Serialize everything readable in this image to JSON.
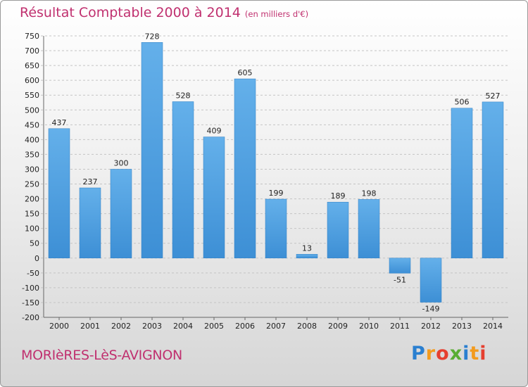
{
  "header": {
    "title": "Résultat Comptable 2000 à 2014",
    "unit": "(en milliers d'€)"
  },
  "footer": {
    "city": "MORIèRES-LèS-AVIGNON",
    "logo": [
      "P",
      "r",
      "o",
      "x",
      "i",
      "t",
      "i"
    ]
  },
  "colors": {
    "bar": "#3d8fd5",
    "bar_light": "#64b0ea",
    "title": "#c0306f"
  },
  "chart_data": {
    "type": "bar",
    "title": "Résultat Comptable 2000 à 2014",
    "subtitle": "(en milliers d'€)",
    "xlabel": "",
    "ylabel": "",
    "categories": [
      "2000",
      "2001",
      "2002",
      "2003",
      "2004",
      "2005",
      "2006",
      "2007",
      "2008",
      "2009",
      "2010",
      "2011",
      "2012",
      "2013",
      "2014"
    ],
    "values": [
      437,
      237,
      300,
      728,
      528,
      409,
      605,
      199,
      13,
      189,
      198,
      -51,
      -149,
      506,
      527
    ],
    "ylim": [
      -200,
      750
    ],
    "ytick_step": 50,
    "grid": true
  }
}
